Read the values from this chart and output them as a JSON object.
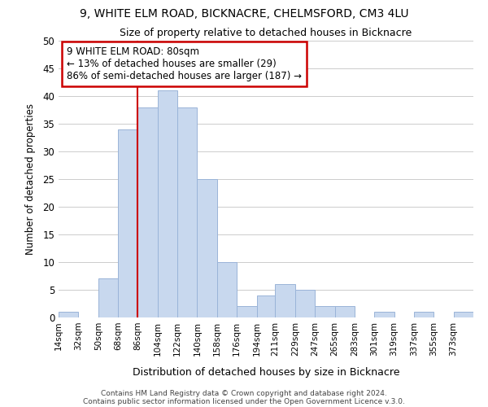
{
  "title1": "9, WHITE ELM ROAD, BICKNACRE, CHELMSFORD, CM3 4LU",
  "title2": "Size of property relative to detached houses in Bicknacre",
  "xlabel": "Distribution of detached houses by size in Bicknacre",
  "ylabel": "Number of detached properties",
  "footer1": "Contains HM Land Registry data © Crown copyright and database right 2024.",
  "footer2": "Contains public sector information licensed under the Open Government Licence v.3.0.",
  "bin_labels": [
    "14sqm",
    "32sqm",
    "50sqm",
    "68sqm",
    "86sqm",
    "104sqm",
    "122sqm",
    "140sqm",
    "158sqm",
    "176sqm",
    "194sqm",
    "211sqm",
    "229sqm",
    "247sqm",
    "265sqm",
    "283sqm",
    "301sqm",
    "319sqm",
    "337sqm",
    "355sqm",
    "373sqm"
  ],
  "bin_edges": [
    14,
    32,
    50,
    68,
    86,
    104,
    122,
    140,
    158,
    176,
    194,
    211,
    229,
    247,
    265,
    283,
    301,
    319,
    337,
    355,
    373,
    391
  ],
  "bar_heights": [
    1,
    0,
    7,
    34,
    38,
    41,
    38,
    25,
    10,
    2,
    4,
    6,
    5,
    2,
    2,
    0,
    1,
    0,
    1,
    0,
    1
  ],
  "bar_color": "#c8d8ee",
  "bar_edgecolor": "#9ab4d8",
  "red_line_x": 86,
  "annotation_title": "9 WHITE ELM ROAD: 80sqm",
  "annotation_line1": "← 13% of detached houses are smaller (29)",
  "annotation_line2": "86% of semi-detached houses are larger (187) →",
  "annotation_box_color": "#ffffff",
  "annotation_box_edgecolor": "#cc0000",
  "ylim": [
    0,
    50
  ],
  "yticks": [
    0,
    5,
    10,
    15,
    20,
    25,
    30,
    35,
    40,
    45,
    50
  ],
  "background_color": "#ffffff",
  "grid_color": "#cccccc"
}
